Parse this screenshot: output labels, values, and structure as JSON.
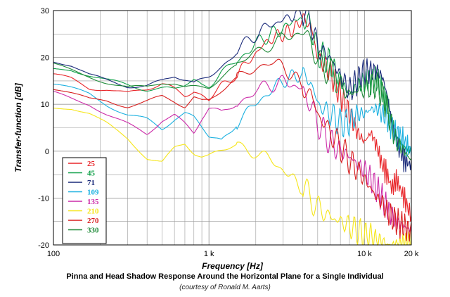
{
  "caption": {
    "title": "Pinna and Head Shadow Response Around the Horizontal Plane for a Single Individual",
    "subtitle": "(courtesy of Ronald M. Aarts)"
  },
  "chart_data": {
    "type": "line",
    "xlabel": "Frequency [Hz]",
    "ylabel": "Transfer-function [dB]",
    "xscale": "log",
    "xlim": [
      100,
      20000
    ],
    "ylim": [
      -20,
      30
    ],
    "xticks": [
      {
        "value": 100,
        "label": "100"
      },
      {
        "value": 1000,
        "label": "1 k"
      },
      {
        "value": 10000,
        "label": "10 k"
      },
      {
        "value": 20000,
        "label": "20 k"
      }
    ],
    "yticks": [
      {
        "value": 30,
        "label": "30"
      },
      {
        "value": 20,
        "label": "20"
      },
      {
        "value": 10,
        "label": "10"
      },
      {
        "value": 0,
        "label": "0"
      },
      {
        "value": -10,
        "label": "-10"
      },
      {
        "value": -20,
        "label": "-20"
      }
    ],
    "grid": true,
    "legend_position": "bottom-left",
    "series": [
      {
        "name": "25",
        "color": "#e8262a",
        "x": [
          100,
          130,
          170,
          220,
          300,
          400,
          500,
          600,
          700,
          800,
          900,
          1000,
          1200,
          1500,
          2000,
          2500,
          3000,
          3500,
          4000,
          4500,
          5000,
          6000,
          7000,
          8000,
          9000,
          10000,
          11000,
          12000,
          13000,
          14000,
          15000,
          16000,
          18000,
          20000
        ],
        "y": [
          16,
          15,
          13,
          13,
          12,
          13,
          14,
          13,
          12,
          13,
          12,
          11,
          14,
          16,
          21,
          24,
          25,
          26,
          28,
          27,
          20,
          17,
          12,
          8,
          4,
          2,
          4,
          1,
          -3,
          -5,
          -8,
          -6,
          -10,
          -14
        ]
      },
      {
        "name": "45",
        "color": "#0fa048",
        "x": [
          100,
          130,
          170,
          220,
          300,
          400,
          500,
          600,
          700,
          800,
          900,
          1000,
          1200,
          1500,
          2000,
          2500,
          3000,
          3500,
          4000,
          4500,
          5000,
          6000,
          7000,
          8000,
          9000,
          10000,
          11000,
          12000,
          13000,
          14000,
          15000,
          16000,
          18000,
          20000
        ],
        "y": [
          17,
          17,
          16,
          15,
          14,
          13,
          13,
          13,
          14,
          15,
          14,
          14,
          17,
          19,
          23,
          25,
          26,
          28,
          28,
          27,
          21,
          19,
          15,
          12,
          14,
          15,
          15,
          15,
          13,
          10,
          6,
          3,
          1,
          0
        ]
      },
      {
        "name": "71",
        "color": "#1a2a7a",
        "x": [
          100,
          130,
          170,
          220,
          300,
          400,
          500,
          600,
          700,
          800,
          900,
          1000,
          1200,
          1500,
          2000,
          2500,
          3000,
          3500,
          4000,
          4500,
          5000,
          6000,
          7000,
          8000,
          9000,
          10000,
          11000,
          12000,
          13000,
          14000,
          15000,
          16000,
          18000,
          20000
        ],
        "y": [
          19,
          18,
          16,
          15,
          14,
          14,
          15,
          16,
          15,
          14,
          15,
          16,
          18,
          21,
          25,
          27,
          28,
          29,
          30,
          28,
          22,
          20,
          16,
          13,
          15,
          17,
          17,
          17,
          16,
          12,
          6,
          2,
          -2,
          -3
        ]
      },
      {
        "name": "109",
        "color": "#1ab0e0",
        "x": [
          100,
          130,
          170,
          220,
          300,
          400,
          500,
          600,
          700,
          800,
          900,
          1000,
          1200,
          1500,
          2000,
          2500,
          3000,
          3500,
          4000,
          4500,
          5000,
          6000,
          7000,
          8000,
          9000,
          10000,
          11000,
          12000,
          13000,
          14000,
          15000,
          16000,
          18000,
          20000
        ],
        "y": [
          14,
          13,
          12,
          10,
          8,
          7,
          5,
          7,
          8,
          7,
          5,
          3,
          2,
          6,
          10,
          13,
          15,
          16,
          16,
          15,
          10,
          8,
          6,
          6,
          8,
          8,
          9,
          9,
          8,
          7,
          5,
          4,
          2,
          0
        ]
      },
      {
        "name": "135",
        "color": "#cc2aa8",
        "x": [
          100,
          130,
          170,
          220,
          300,
          400,
          500,
          600,
          700,
          800,
          900,
          1000,
          1200,
          1500,
          2000,
          2500,
          3000,
          3500,
          4000,
          4500,
          5000,
          6000,
          7000,
          8000,
          9000,
          10000,
          11000,
          12000,
          13000,
          14000,
          15000,
          16000,
          18000,
          20000
        ],
        "y": [
          12,
          11,
          10,
          8,
          6,
          4,
          7,
          8,
          6,
          4,
          7,
          9,
          8,
          10,
          13,
          14,
          15,
          14,
          13,
          10,
          6,
          2,
          0,
          -1,
          -3,
          -4,
          -6,
          -8,
          -10,
          -12,
          -14,
          -15,
          -16,
          -17
        ]
      },
      {
        "name": "210",
        "color": "#f6e61a",
        "x": [
          100,
          130,
          170,
          220,
          300,
          400,
          500,
          600,
          700,
          800,
          900,
          1000,
          1200,
          1500,
          2000,
          2500,
          3000,
          3500,
          4000,
          4500,
          5000,
          6000,
          7000,
          8000,
          9000,
          10000,
          11000,
          12000,
          13000,
          14000,
          15000,
          16000,
          18000,
          20000
        ],
        "y": [
          9,
          9,
          8,
          6,
          3,
          -1,
          -2,
          1,
          2,
          0,
          -1,
          -1,
          0,
          1,
          0,
          -2,
          -4,
          -6,
          -8,
          -10,
          -12,
          -14,
          -15,
          -16,
          -17,
          -18,
          -18,
          -19,
          -19,
          -20,
          -20,
          -20,
          -20,
          -20
        ]
      },
      {
        "name": "270",
        "color": "#d81e1e",
        "x": [
          100,
          130,
          170,
          220,
          300,
          400,
          500,
          600,
          700,
          800,
          900,
          1000,
          1200,
          1500,
          2000,
          2500,
          3000,
          3500,
          4000,
          4500,
          5000,
          6000,
          7000,
          8000,
          9000,
          10000,
          11000,
          12000,
          13000,
          14000,
          15000,
          16000,
          18000,
          20000
        ],
        "y": [
          13,
          12,
          11,
          11,
          10,
          11,
          12,
          11,
          10,
          12,
          11,
          11,
          13,
          15,
          18,
          19,
          18,
          16,
          14,
          12,
          8,
          4,
          1,
          -2,
          -4,
          -6,
          -8,
          -10,
          -11,
          -13,
          -14,
          -15,
          -16,
          -17
        ]
      },
      {
        "name": "330",
        "color": "#1e8a38",
        "x": [
          100,
          130,
          170,
          220,
          300,
          400,
          500,
          600,
          700,
          800,
          900,
          1000,
          1200,
          1500,
          2000,
          2500,
          3000,
          3500,
          4000,
          4500,
          5000,
          6000,
          7000,
          8000,
          9000,
          10000,
          11000,
          12000,
          13000,
          14000,
          15000,
          16000,
          18000,
          20000
        ],
        "y": [
          18,
          17,
          16,
          15,
          14,
          14,
          15,
          15,
          14,
          14,
          14,
          14,
          16,
          18,
          21,
          23,
          24,
          25,
          25,
          24,
          19,
          17,
          14,
          12,
          13,
          13,
          14,
          14,
          12,
          9,
          5,
          2,
          0,
          -2
        ]
      }
    ]
  }
}
